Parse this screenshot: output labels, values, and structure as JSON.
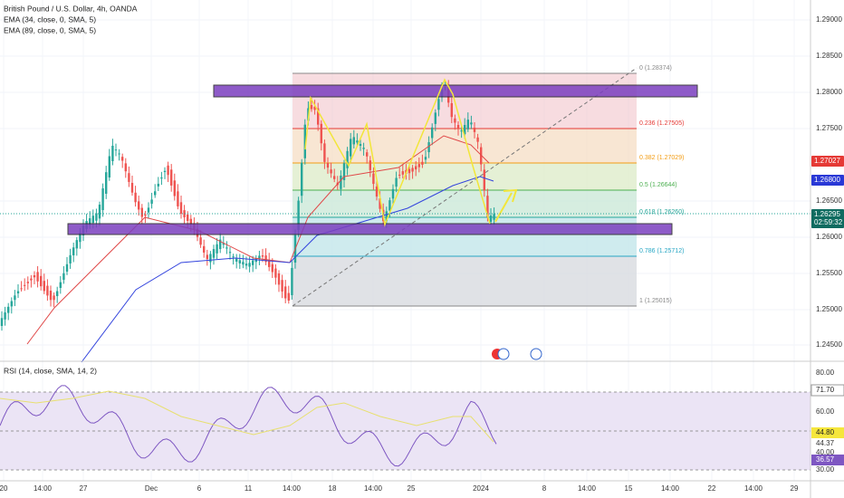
{
  "legend": {
    "symbol": "British Pound / U.S. Dollar, 4h, OANDA",
    "ema1": "EMA (34, close, 0, SMA, 5)",
    "ema2": "EMA (89, close, 0, SMA, 5)",
    "rsi": "RSI (14, close, SMA, 14, 2)"
  },
  "price_axis": [
    "1.29000",
    "1.28500",
    "1.28000",
    "1.27500",
    "1.26500",
    "1.26000",
    "1.25500",
    "1.25000",
    "1.24500"
  ],
  "badges": {
    "ema1": "1.27027",
    "ema2": "1.26800",
    "last": "1.26295",
    "countdown": "02:59:32"
  },
  "fib_levels": [
    "0 (1.28374)",
    "0.236 (1.27505)",
    "0.382 (1.27029)",
    "0.5 (1.26644)",
    "0.618 (1.26260)",
    "0.786 (1.25712)",
    "1 (1.25015)"
  ],
  "rsi_axis": [
    "80.00",
    "60.00",
    "44.37",
    "40.00",
    "30.00"
  ],
  "rsi_badges": [
    "71.70",
    "44.80",
    "36.57"
  ],
  "time_axis": [
    "20",
    "14:00",
    "27",
    "Dec",
    "6",
    "11",
    "14:00",
    "18",
    "14:00",
    "25",
    "2024",
    "8",
    "14:00",
    "15",
    "14:00",
    "22",
    "14:00",
    "29"
  ]
}
